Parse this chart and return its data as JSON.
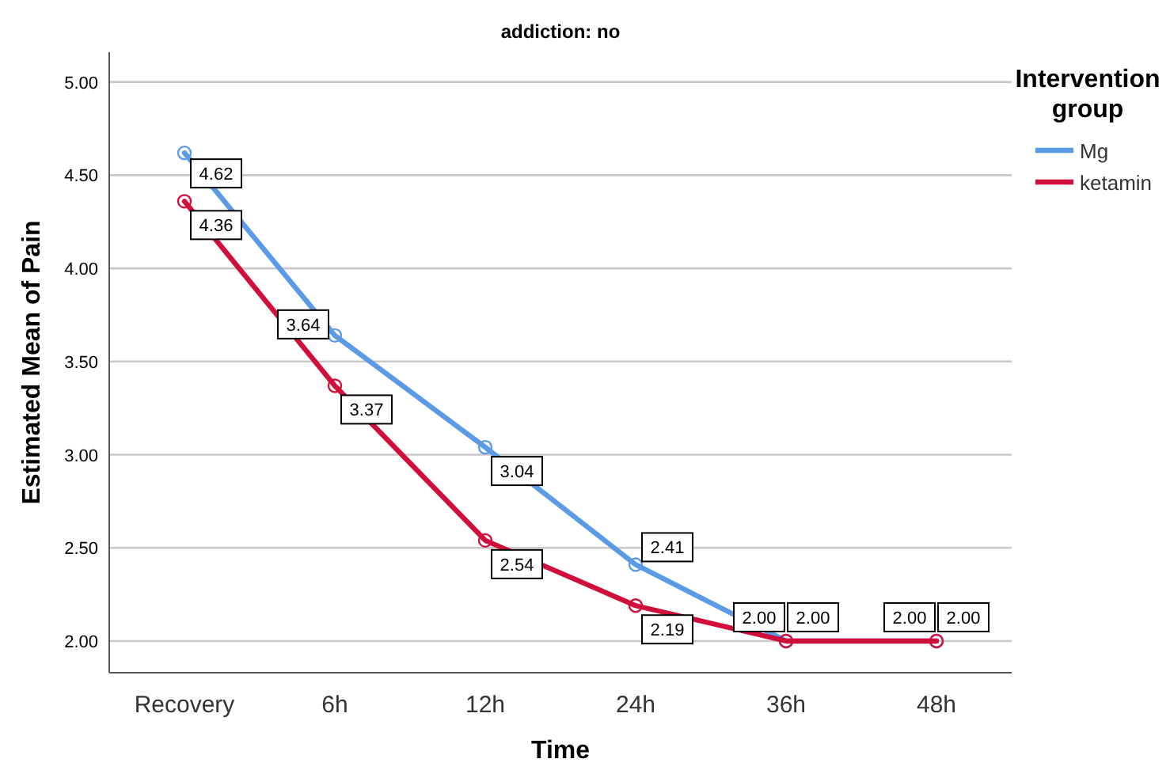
{
  "chart_data": {
    "type": "line",
    "title": "addiction: no",
    "xlabel": "Time",
    "ylabel": "Estimated Mean of Pain",
    "legend_title": "Intervention group",
    "categories": [
      "Recovery",
      "6h",
      "12h",
      "24h",
      "36h",
      "48h"
    ],
    "series": [
      {
        "name": "Mg",
        "color": "#5b9be6",
        "values": [
          4.62,
          3.64,
          3.04,
          2.41,
          2.0,
          2.0
        ],
        "value_labels": [
          "4.62",
          "3.64",
          "3.04",
          "2.41",
          "2.00",
          "2.00"
        ]
      },
      {
        "name": "ketamin",
        "color": "#d0103a",
        "values": [
          4.36,
          3.37,
          2.54,
          2.19,
          2.0,
          2.0
        ],
        "value_labels": [
          "4.36",
          "3.37",
          "2.54",
          "2.19",
          "2.00",
          "2.00"
        ]
      }
    ],
    "ylim": [
      1.83,
      5.16
    ],
    "yticks": [
      {
        "value": 2,
        "label": "2.00"
      },
      {
        "value": 2.5,
        "label": "2.50"
      },
      {
        "value": 3,
        "label": "3.00"
      },
      {
        "value": 3.5,
        "label": "3.50"
      },
      {
        "value": 4,
        "label": "4.00"
      },
      {
        "value": 4.5,
        "label": "4.50"
      },
      {
        "value": 5,
        "label": "5.00"
      }
    ],
    "grid": "y",
    "legend": "top right",
    "marker": "circle",
    "line_style": "solid"
  }
}
